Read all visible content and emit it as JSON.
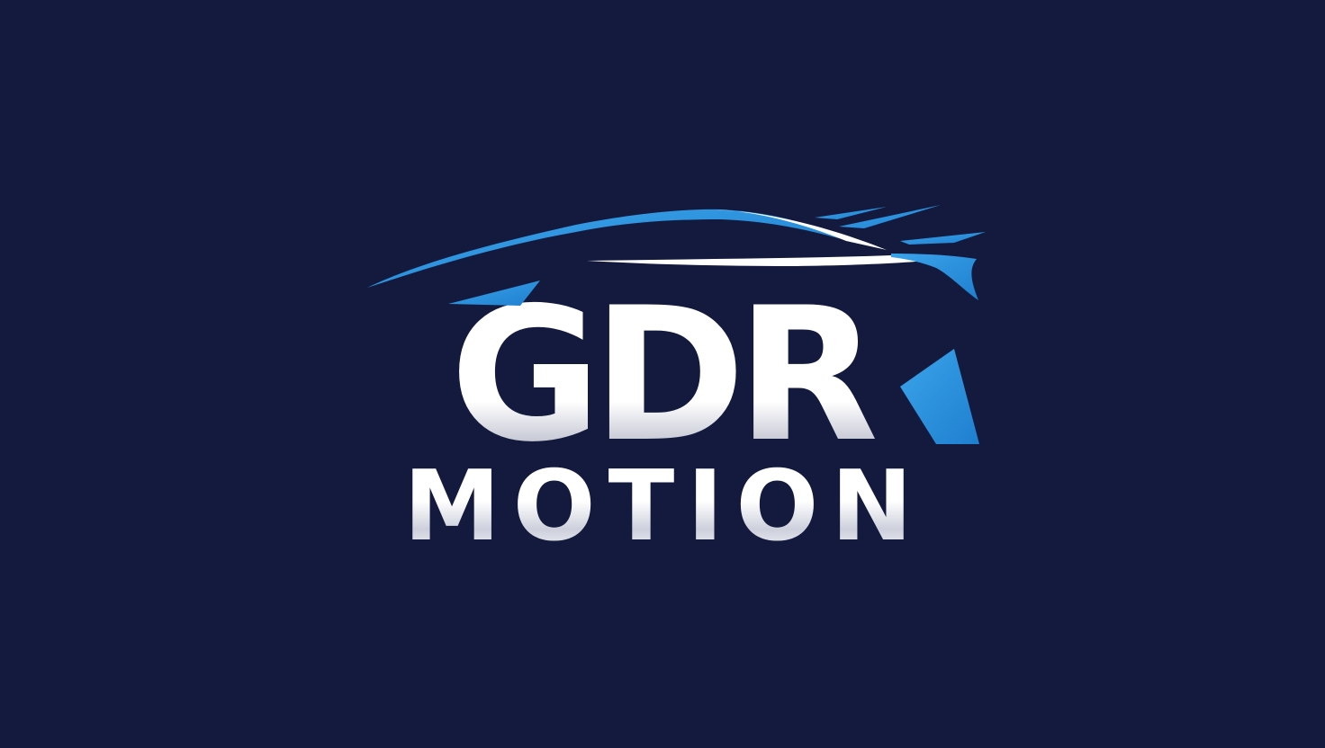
{
  "logo": {
    "wordmark": "GDR",
    "tagline": "MOTION",
    "icon": "car-silhouette-swoosh-icon"
  },
  "colors": {
    "background": "#141a3e",
    "accent_blue": "#2a8fdc",
    "text_white": "#ffffff",
    "text_shadow": "#b9bcc9"
  }
}
